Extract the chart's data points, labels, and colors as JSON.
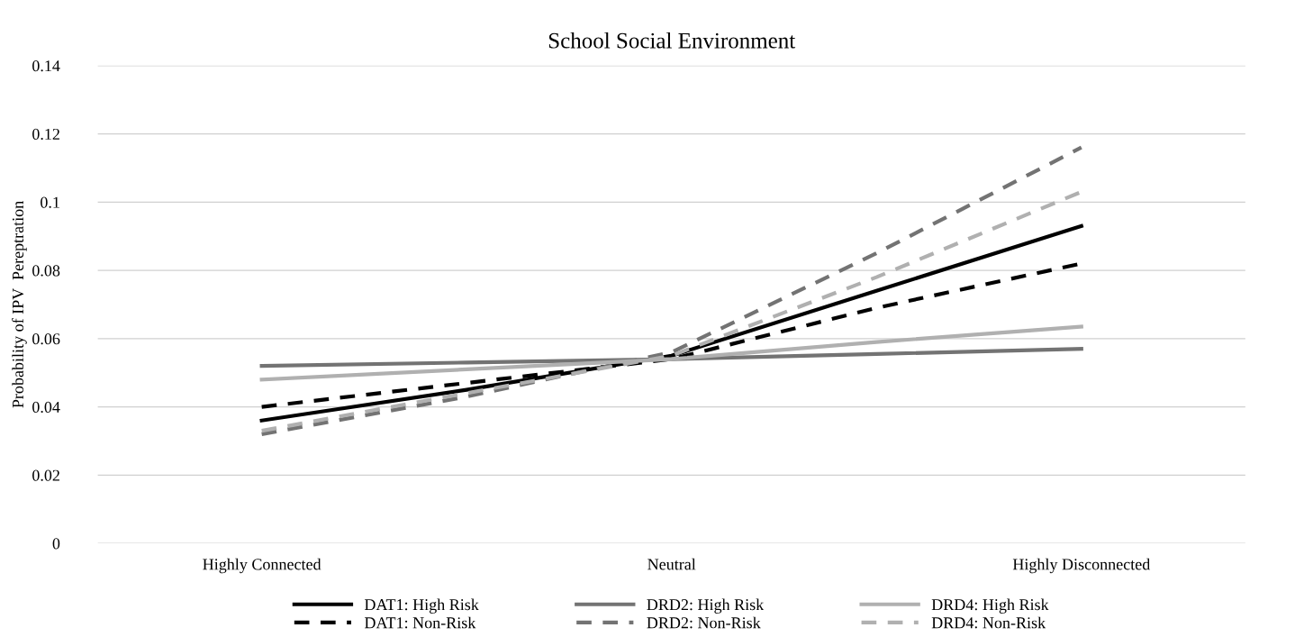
{
  "chart_data": {
    "type": "line",
    "title": "School Social Environment",
    "ylabel": "Probability of IPV  Pereptration",
    "categories": [
      "Highly Connected",
      null,
      "Neutral",
      null,
      "Highly Disconnected"
    ],
    "series": [
      {
        "name": "DAT1: High Risk",
        "color": "#000000",
        "line_style": "solid",
        "values": [
          0.036,
          0.045,
          0.055,
          0.074,
          0.093
        ]
      },
      {
        "name": "DAT1: Non-Risk",
        "color": "#000000",
        "line_style": "dashed",
        "values": [
          0.04,
          0.047,
          0.054,
          0.069,
          0.082
        ]
      },
      {
        "name": "DRD2: High Risk",
        "color": "#737373",
        "line_style": "solid",
        "values": [
          0.052,
          0.053,
          0.054,
          0.0555,
          0.057
        ]
      },
      {
        "name": "DRD2: Non-Risk",
        "color": "#737373",
        "line_style": "dashed",
        "values": [
          0.032,
          0.043,
          0.056,
          0.085,
          0.116
        ]
      },
      {
        "name": "DRD4: High Risk",
        "color": "#b0b0b0",
        "line_style": "solid",
        "values": [
          0.048,
          0.051,
          0.054,
          0.059,
          0.0635
        ]
      },
      {
        "name": "DRD4: Non-Risk",
        "color": "#b0b0b0",
        "line_style": "dashed",
        "values": [
          0.033,
          0.044,
          0.055,
          0.078,
          0.103
        ]
      }
    ],
    "ylim": [
      0,
      0.14
    ],
    "yticks": [
      0,
      0.02,
      0.04,
      0.06,
      0.08,
      0.1,
      0.12,
      0.14
    ],
    "grid": "y",
    "legend": "bottom",
    "marker": "none"
  }
}
